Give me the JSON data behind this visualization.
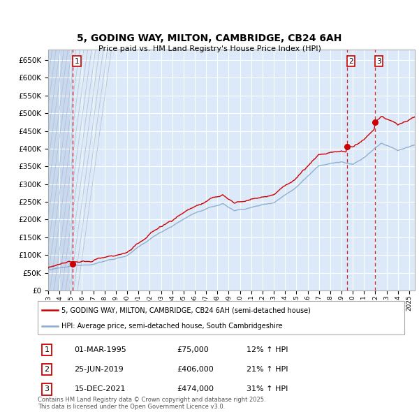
{
  "title": "5, GODING WAY, MILTON, CAMBRIDGE, CB24 6AH",
  "subtitle": "Price paid vs. HM Land Registry's House Price Index (HPI)",
  "ylim": [
    0,
    680000
  ],
  "yticks": [
    0,
    50000,
    100000,
    150000,
    200000,
    250000,
    300000,
    350000,
    400000,
    450000,
    500000,
    550000,
    600000,
    650000
  ],
  "xlim_start": 1993.0,
  "xlim_end": 2025.5,
  "background_color": "#ffffff",
  "plot_bg_color": "#dce9f8",
  "grid_color": "#ffffff",
  "sale_color": "#cc0000",
  "hpi_color": "#88aacc",
  "sale_line_label": "5, GODING WAY, MILTON, CAMBRIDGE, CB24 6AH (semi-detached house)",
  "hpi_line_label": "HPI: Average price, semi-detached house, South Cambridgeshire",
  "transactions": [
    {
      "num": 1,
      "date_label": "01-MAR-1995",
      "price": 75000,
      "pct": "12%",
      "date_x": 1995.17
    },
    {
      "num": 2,
      "date_label": "25-JUN-2019",
      "price": 406000,
      "pct": "21%",
      "date_x": 2019.48
    },
    {
      "num": 3,
      "date_label": "15-DEC-2021",
      "price": 474000,
      "pct": "31%",
      "date_x": 2021.96
    }
  ],
  "footer": "Contains HM Land Registry data © Crown copyright and database right 2025.\nThis data is licensed under the Open Government Licence v3.0.",
  "xtick_years": [
    1993,
    1994,
    1995,
    1996,
    1997,
    1998,
    1999,
    2000,
    2001,
    2002,
    2003,
    2004,
    2005,
    2006,
    2007,
    2008,
    2009,
    2010,
    2011,
    2012,
    2013,
    2014,
    2015,
    2016,
    2017,
    2018,
    2019,
    2020,
    2021,
    2022,
    2023,
    2024,
    2025
  ]
}
